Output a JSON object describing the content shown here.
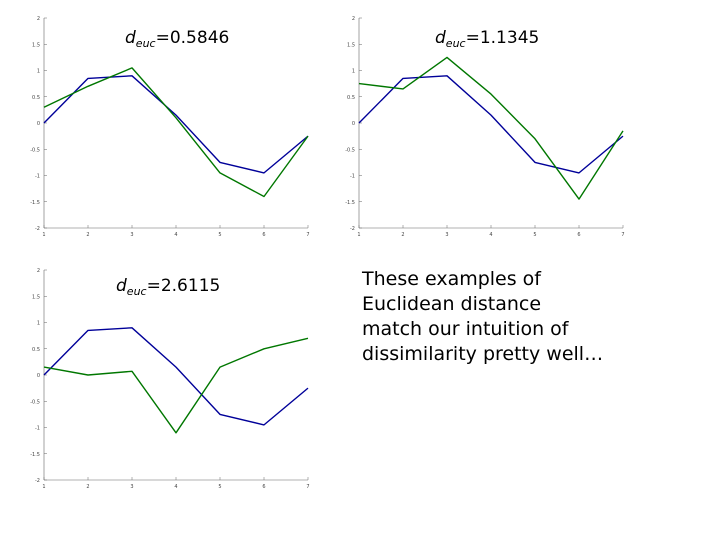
{
  "chart_data": [
    {
      "type": "line",
      "label": {
        "prefix": "d",
        "subscript": "euc",
        "value": "=0.5846"
      },
      "x": [
        1,
        2,
        3,
        4,
        5,
        6,
        7
      ],
      "xlim": [
        1,
        7
      ],
      "ylim": [
        -2,
        2
      ],
      "xticks": [
        1,
        2,
        3,
        4,
        5,
        6,
        7
      ],
      "yticks": [
        -2,
        -1.5,
        -1,
        -0.5,
        0,
        0.5,
        1,
        1.5,
        2
      ],
      "ytick_labels": [
        "-2",
        "-1.5",
        "-1",
        "-0.5",
        "0",
        "0.5",
        "1",
        "1.5",
        "2"
      ],
      "series": [
        {
          "color": "#000099",
          "values": [
            0.0,
            0.85,
            0.9,
            0.15,
            -0.75,
            -0.95,
            -0.25
          ]
        },
        {
          "color": "#007700",
          "values": [
            0.3,
            0.7,
            1.05,
            0.1,
            -0.95,
            -1.4,
            -0.25
          ]
        }
      ]
    },
    {
      "type": "line",
      "label": {
        "prefix": "d",
        "subscript": "euc",
        "value": "=1.1345"
      },
      "x": [
        1,
        2,
        3,
        4,
        5,
        6,
        7
      ],
      "xlim": [
        1,
        7
      ],
      "ylim": [
        -2,
        2
      ],
      "xticks": [
        1,
        2,
        3,
        4,
        5,
        6,
        7
      ],
      "yticks": [
        -2,
        -1.5,
        -1,
        -0.5,
        0,
        0.5,
        1,
        1.5,
        2
      ],
      "ytick_labels": [
        "-2",
        "-1.5",
        "-1",
        "-0.5",
        "0",
        "0.5",
        "1",
        "1.5",
        "2"
      ],
      "series": [
        {
          "color": "#000099",
          "values": [
            0.0,
            0.85,
            0.9,
            0.15,
            -0.75,
            -0.95,
            -0.25
          ]
        },
        {
          "color": "#007700",
          "values": [
            0.75,
            0.65,
            1.25,
            0.55,
            -0.3,
            -1.45,
            -0.15
          ]
        }
      ]
    },
    {
      "type": "line",
      "label": {
        "prefix": "d",
        "subscript": "euc",
        "value": "=2.6115"
      },
      "x": [
        1,
        2,
        3,
        4,
        5,
        6,
        7
      ],
      "xlim": [
        1,
        7
      ],
      "ylim": [
        -2,
        2
      ],
      "xticks": [
        1,
        2,
        3,
        4,
        5,
        6,
        7
      ],
      "yticks": [
        -2,
        -1.5,
        -1,
        -0.5,
        0,
        0.5,
        1,
        1.5,
        2
      ],
      "ytick_labels": [
        "-2",
        "-1.5",
        "-1",
        "-0.5",
        "0",
        "0.5",
        "1",
        "1.5",
        "2"
      ],
      "series": [
        {
          "color": "#000099",
          "values": [
            0.0,
            0.85,
            0.9,
            0.15,
            -0.75,
            -0.95,
            -0.25
          ]
        },
        {
          "color": "#007700",
          "values": [
            0.15,
            0.0,
            0.07,
            -1.1,
            0.15,
            0.5,
            0.7
          ]
        }
      ]
    }
  ],
  "caption_lines": [
    "These examples of",
    "Euclidean distance",
    "match our intuition of",
    "dissimilarity pretty well…"
  ]
}
